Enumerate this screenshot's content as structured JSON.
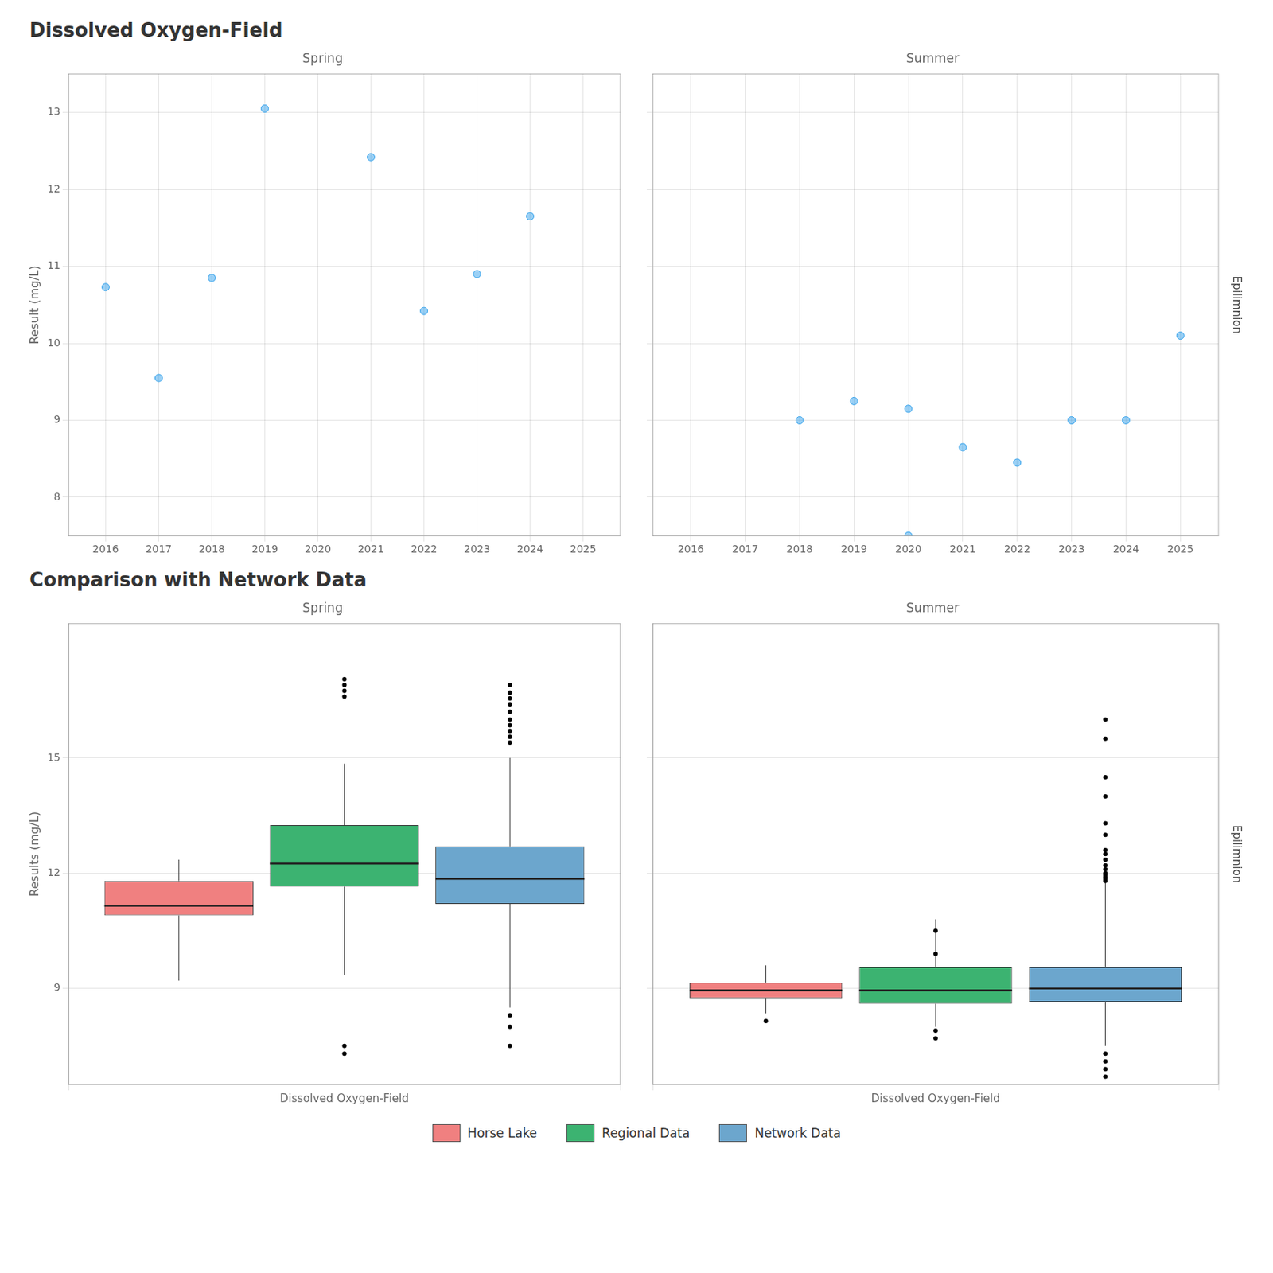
{
  "chart_data": [
    {
      "type": "scatter",
      "title": "Dissolved Oxygen-Field",
      "subtitle": "Spring",
      "x": [
        2016,
        2017,
        2018,
        2019,
        2021,
        2022,
        2023,
        2024
      ],
      "values": [
        10.73,
        9.55,
        10.85,
        13.05,
        12.42,
        10.42,
        10.9,
        11.65
      ],
      "xlim": [
        2015.3,
        2025.7
      ],
      "xticks": [
        2016,
        2017,
        2018,
        2019,
        2020,
        2021,
        2022,
        2023,
        2024,
        2025
      ],
      "ylim": [
        7.5,
        13.5
      ],
      "yticks": [
        8,
        9,
        10,
        11,
        12,
        13
      ],
      "ylabel": "Result (mg/L)",
      "grid": true
    },
    {
      "type": "scatter",
      "subtitle": "Summer",
      "annotations": [
        "Epilimnion"
      ],
      "x": [
        2018,
        2019,
        2020,
        2020,
        2021,
        2022,
        2023,
        2024,
        2025
      ],
      "values": [
        9.0,
        9.25,
        9.15,
        7.5,
        8.65,
        8.45,
        9.0,
        9.0,
        10.1
      ],
      "xlim": [
        2015.3,
        2025.7
      ],
      "xticks": [
        2016,
        2017,
        2018,
        2019,
        2020,
        2021,
        2022,
        2023,
        2024,
        2025
      ],
      "ylim": [
        7.5,
        13.5
      ],
      "yticks": [
        8,
        9,
        10,
        11,
        12,
        13
      ],
      "grid": true,
      "tick_labels": "x"
    },
    {
      "type": "box",
      "title": "Comparison with Network Data",
      "subtitle": "Spring",
      "categories": [
        "Dissolved Oxygen-Field"
      ],
      "series": [
        {
          "name": "Horse Lake",
          "color": "#f08080",
          "median": 11.15,
          "q1": 10.9,
          "q3": 11.8,
          "whisker_low": 9.2,
          "whisker_high": 12.35,
          "outliers": []
        },
        {
          "name": "Regional Data",
          "color": "#3cb371",
          "median": 12.25,
          "q1": 11.65,
          "q3": 13.25,
          "whisker_low": 9.35,
          "whisker_high": 14.85,
          "outliers": [
            7.3,
            7.5,
            16.6,
            16.75,
            16.9,
            17.05
          ]
        },
        {
          "name": "Network Data",
          "color": "#6ca6cd",
          "median": 11.85,
          "q1": 11.2,
          "q3": 12.7,
          "whisker_low": 8.5,
          "whisker_high": 15.0,
          "outliers": [
            7.5,
            8.0,
            15.4,
            15.55,
            15.7,
            15.85,
            16.0,
            16.2,
            16.4,
            16.55,
            16.7,
            16.9,
            8.3
          ]
        }
      ],
      "ylim": [
        6.5,
        18.5
      ],
      "yticks": [
        9,
        12,
        15
      ],
      "ylabel": "Results (mg/L)",
      "grid": true,
      "legend": "bottom"
    },
    {
      "type": "box",
      "subtitle": "Summer",
      "annotations": [
        "Epilimnion"
      ],
      "categories": [
        "Dissolved Oxygen-Field"
      ],
      "series": [
        {
          "name": "Horse Lake",
          "color": "#f08080",
          "median": 8.95,
          "q1": 8.75,
          "q3": 9.15,
          "whisker_low": 8.35,
          "whisker_high": 9.6,
          "outliers": [
            8.15
          ]
        },
        {
          "name": "Regional Data",
          "color": "#3cb371",
          "median": 8.95,
          "q1": 8.6,
          "q3": 9.55,
          "whisker_low": 8.0,
          "whisker_high": 10.8,
          "outliers": [
            10.5,
            9.9,
            7.7,
            7.9
          ]
        },
        {
          "name": "Network Data",
          "color": "#6ca6cd",
          "median": 9.0,
          "q1": 8.65,
          "q3": 9.55,
          "whisker_low": 7.5,
          "whisker_high": 11.8,
          "outliers": [
            12.0,
            12.2,
            12.5,
            13.0,
            13.3,
            14.0,
            14.5,
            15.5,
            16.0,
            11.8,
            11.85,
            11.9,
            11.95,
            12.1,
            12.35,
            12.6,
            7.3,
            7.1,
            6.9,
            6.7
          ]
        }
      ],
      "ylim": [
        6.5,
        18.5
      ],
      "yticks": [
        9,
        12,
        15
      ],
      "grid": true,
      "tick_labels": "x"
    }
  ]
}
